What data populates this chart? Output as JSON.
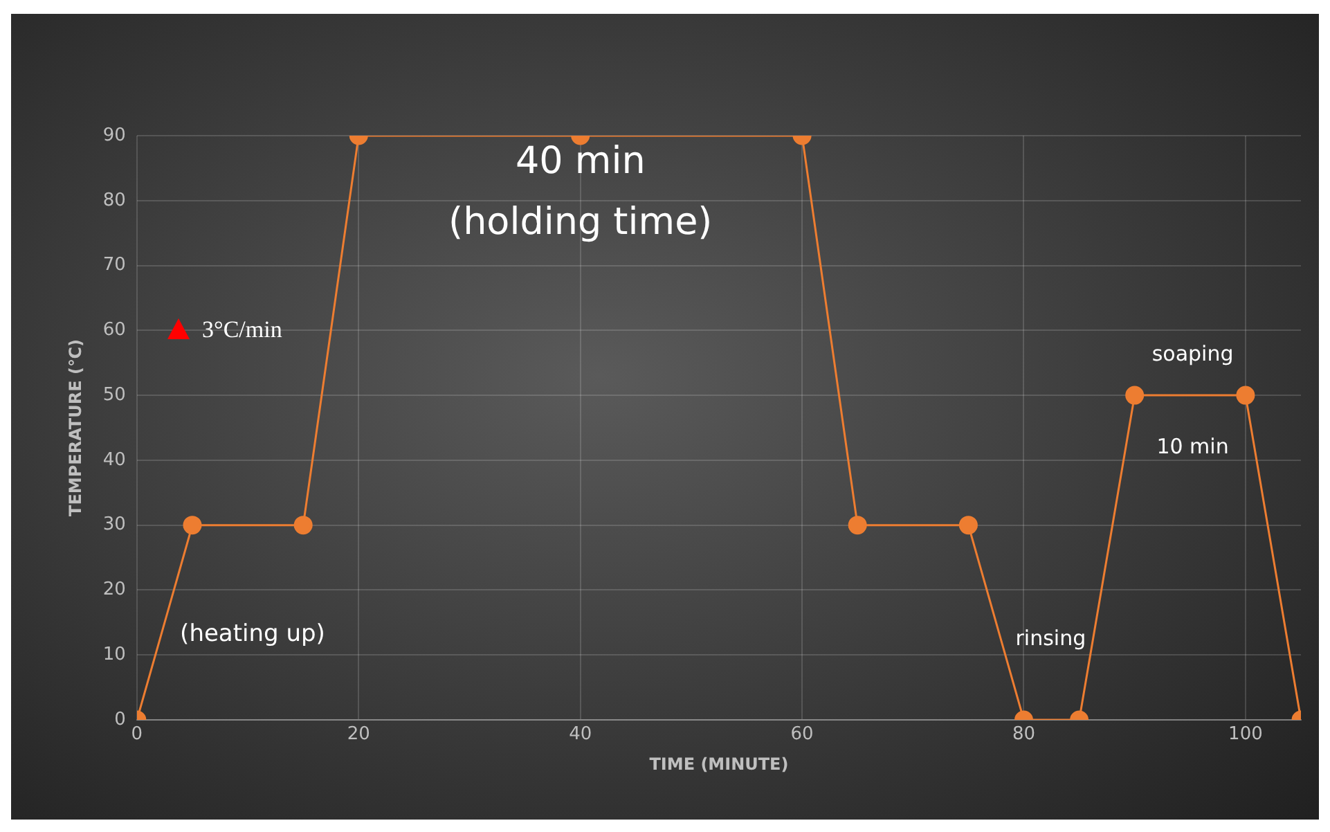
{
  "chart_data": {
    "type": "line",
    "xlabel": "TIME (MINUTE)",
    "ylabel": "TEMPERATURE (℃)",
    "x": [
      0,
      5,
      15,
      20,
      40,
      60,
      65,
      75,
      80,
      85,
      90,
      100,
      105
    ],
    "series": [
      {
        "color": "#ed7d31",
        "values": [
          0,
          30,
          30,
          90,
          90,
          90,
          30,
          30,
          0,
          0,
          50,
          50,
          0
        ]
      }
    ],
    "xlim": [
      0,
      105
    ],
    "xticks": [
      0,
      20,
      40,
      60,
      80,
      100
    ],
    "ylim": [
      0,
      90
    ],
    "yticks": [
      0,
      10,
      20,
      30,
      40,
      50,
      60,
      70,
      80,
      90
    ],
    "grid": true,
    "legend": false,
    "marker": "circle",
    "line_style": "solid",
    "annotations": [
      "40 min",
      "(holding time)",
      "3°C/min",
      "(heating up)",
      "rinsing",
      "soaping",
      "10 min"
    ]
  }
}
